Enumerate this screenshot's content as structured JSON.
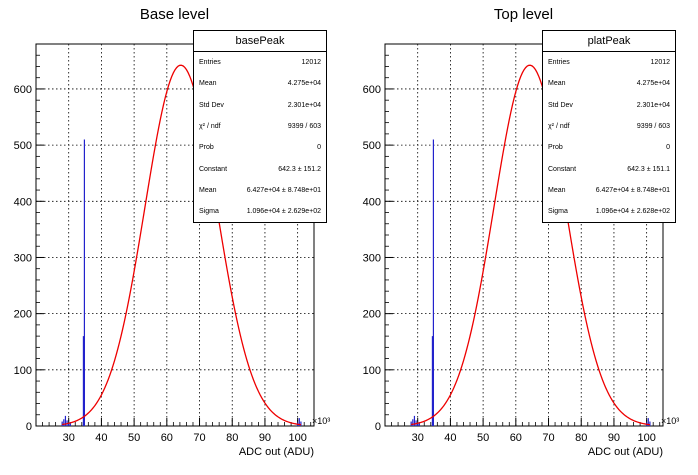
{
  "colors": {
    "fit_line": "#ee0000",
    "histogram": "#2222cc",
    "grid": "#000000",
    "background": "#ffffff"
  },
  "panels": [
    {
      "title": "Base level",
      "xlabel": "ADC out (ADU)",
      "x_exponent": "×10³",
      "stats": {
        "name": "basePeak",
        "rows": [
          {
            "key": "Entries",
            "value": "12012"
          },
          {
            "key": "Mean",
            "value": "4.275e+04"
          },
          {
            "key": "Std Dev",
            "value": "2.301e+04"
          },
          {
            "key": "χ² / ndf",
            "value": "9399 / 603"
          },
          {
            "key": "Prob",
            "value": "0"
          },
          {
            "key": "Constant",
            "value": "642.3 ± 151.2"
          },
          {
            "key": "Mean",
            "value": "6.427e+04 ± 8.748e+01"
          },
          {
            "key": "Sigma",
            "value": "1.096e+04 ± 2.629e+02"
          }
        ]
      }
    },
    {
      "title": "Top level",
      "xlabel": "ADC out (ADU)",
      "x_exponent": "×10³",
      "stats": {
        "name": "platPeak",
        "rows": [
          {
            "key": "Entries",
            "value": "12012"
          },
          {
            "key": "Mean",
            "value": "4.275e+04"
          },
          {
            "key": "Std Dev",
            "value": "2.301e+04"
          },
          {
            "key": "χ² / ndf",
            "value": "9399 / 603"
          },
          {
            "key": "Prob",
            "value": "0"
          },
          {
            "key": "Constant",
            "value": "642.3 ± 151.1"
          },
          {
            "key": "Mean",
            "value": "6.427e+04 ± 8.748e+01"
          },
          {
            "key": "Sigma",
            "value": "1.096e+04 ± 2.628e+02"
          }
        ]
      }
    }
  ],
  "chart_data": [
    {
      "type": "bar",
      "title": "Base level",
      "xlabel": "ADC out (ADU)",
      "ylabel": "",
      "x_unit_multiplier": "×10³",
      "xlim": [
        20,
        105
      ],
      "ylim": [
        0,
        680
      ],
      "xticks": [
        30,
        40,
        50,
        60,
        70,
        80,
        90,
        100
      ],
      "yticks": [
        0,
        100,
        200,
        300,
        400,
        500,
        600
      ],
      "grid": true,
      "legend": "stats box top-right",
      "histogram": {
        "x": [
          28,
          28.5,
          29,
          29.5,
          30,
          30.5,
          34.5,
          34.8,
          100,
          100.5,
          101
        ],
        "values": [
          8,
          12,
          18,
          10,
          5,
          7,
          160,
          510,
          6,
          14,
          8
        ]
      },
      "fit": {
        "function": "gaus",
        "constant": 642.3,
        "mean": 64.27,
        "sigma": 10.96
      }
    },
    {
      "type": "bar",
      "title": "Top level",
      "xlabel": "ADC out (ADU)",
      "ylabel": "",
      "x_unit_multiplier": "×10³",
      "xlim": [
        20,
        105
      ],
      "ylim": [
        0,
        680
      ],
      "xticks": [
        30,
        40,
        50,
        60,
        70,
        80,
        90,
        100
      ],
      "yticks": [
        0,
        100,
        200,
        300,
        400,
        500,
        600
      ],
      "grid": true,
      "legend": "stats box top-right",
      "histogram": {
        "x": [
          28,
          28.5,
          29,
          29.5,
          30,
          30.5,
          34.5,
          34.8,
          100,
          100.5,
          101
        ],
        "values": [
          8,
          12,
          18,
          10,
          5,
          7,
          160,
          510,
          6,
          14,
          8
        ]
      },
      "fit": {
        "function": "gaus",
        "constant": 642.3,
        "mean": 64.27,
        "sigma": 10.96
      }
    }
  ]
}
